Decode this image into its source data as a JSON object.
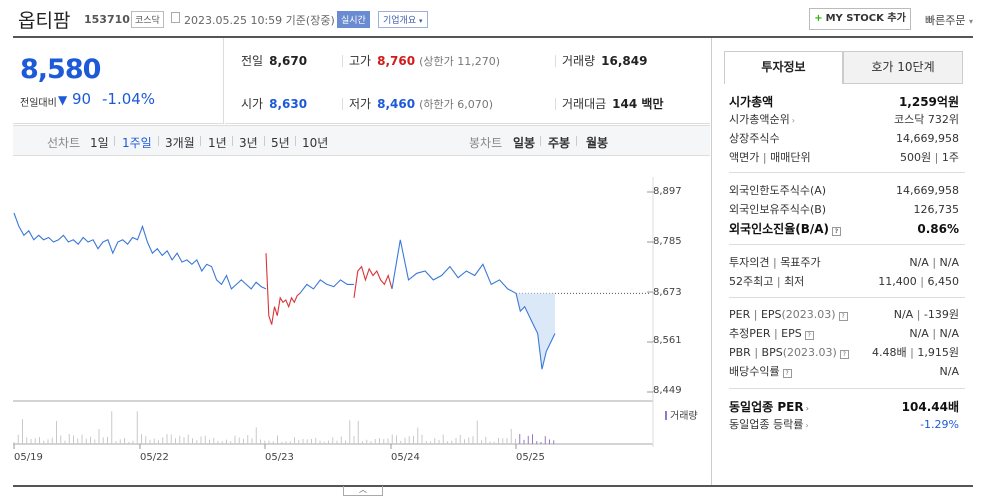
{
  "header": {
    "stock_name": "옵티팜",
    "stock_code": "153710",
    "market": "코스닥",
    "timestamp": "2023.05.25 10:59 기준(장중)",
    "realtime": "실시간",
    "overview": "기업개요",
    "mystock_label": "MY STOCK 추가",
    "quick_order": "빠른주문"
  },
  "price": {
    "current": "8,580",
    "change_label": "전일대비",
    "change_value": "90",
    "change_pct": "-1.04%"
  },
  "quotes": {
    "prev_close_label": "전일",
    "prev_close": "8,670",
    "high_label": "고가",
    "high": "8,760",
    "upper_limit": "(상한가 11,270)",
    "volume_label": "거래량",
    "volume": "16,849",
    "open_label": "시가",
    "open": "8,630",
    "low_label": "저가",
    "low": "8,460",
    "lower_limit": "(하한가 6,070)",
    "amount_label": "거래대금",
    "amount": "144 백만"
  },
  "period_bar": {
    "line_chart_label": "선차트",
    "periods": [
      "1일",
      "1주일",
      "3개월",
      "1년",
      "3년",
      "5년",
      "10년"
    ],
    "active_period": "1주일",
    "candle_label": "봉차트",
    "candles": [
      "일봉",
      "주봉",
      "월봉"
    ]
  },
  "chart_data": {
    "type": "line",
    "y_ticks": [
      "8,897",
      "8,785",
      "8,673",
      "8,561",
      "8,449"
    ],
    "ylim": [
      8449,
      8897
    ],
    "x_ticks": [
      "05/19",
      "05/22",
      "05/23",
      "05/24",
      "05/25"
    ],
    "prev_close_reference": 8670,
    "volume_legend": "거래량",
    "series": [
      {
        "color": "#3a78d8",
        "values": [
          8850,
          8820,
          8800,
          8810,
          8790,
          8800,
          8790,
          8795,
          8785,
          8790,
          8800,
          8785,
          8790,
          8780,
          8795,
          8785,
          8790,
          8770,
          8785,
          8790,
          8760,
          8785,
          8790,
          8780,
          8795,
          8790,
          8820,
          8785,
          8760,
          8770,
          8755,
          8765,
          8745,
          8760,
          8740,
          8745,
          8735,
          8745,
          8720,
          8735,
          8730,
          8700,
          8690,
          8710,
          8680,
          8690,
          8700,
          8690,
          8680,
          8695,
          8685,
          8680
        ]
      }
    ],
    "segments": [
      {
        "color": "#3a78d8",
        "from": 0,
        "to": 8650
      },
      {
        "color": "#d9343a",
        "day": "05/23",
        "values": [
          8760,
          8620,
          8600,
          8640,
          8620,
          8660,
          8650,
          8655,
          8640,
          8660,
          8650,
          8665,
          8670
        ]
      },
      {
        "color": "#3a78d8",
        "day": "05/23-afternoon",
        "values": [
          8670,
          8690,
          8680,
          8700,
          8690,
          8685,
          8700,
          8690,
          8690
        ]
      },
      {
        "color": "#d9343a",
        "day": "05/24-morning",
        "values": [
          8660,
          8720,
          8730,
          8700,
          8725,
          8710,
          8720,
          8700,
          8690,
          8710,
          8680
        ]
      },
      {
        "color": "#3a78d8",
        "day": "05/24",
        "values": [
          8680,
          8790,
          8700,
          8715,
          8720,
          8700,
          8710,
          8730,
          8705,
          8720,
          8710,
          8735,
          8690,
          8700,
          8680,
          8670
        ]
      },
      {
        "color": "#3a78d8",
        "day": "05/25",
        "values": [
          8670,
          8630,
          8640,
          8620,
          8600,
          8580,
          8500,
          8540,
          8560,
          8580
        ]
      }
    ]
  },
  "side": {
    "tab_active": "투자정보",
    "tab_other": "호가 10단계",
    "rows": [
      {
        "label": "시가총액",
        "value": "1,259억원"
      },
      {
        "label": "시가총액순위",
        "value": "코스닥 732위"
      },
      {
        "label": "상장주식수",
        "value": "14,669,958"
      },
      {
        "label": "액면가",
        "label2": "매매단위",
        "value": "500원",
        "value2": "1주"
      },
      {
        "label": "외국인한도주식수(A)",
        "value": "14,669,958"
      },
      {
        "label": "외국인보유주식수(B)",
        "value": "126,735"
      },
      {
        "label": "외국인소진율(B/A)",
        "value": "0.86%"
      },
      {
        "label": "투자의견",
        "label2": "목표주가",
        "value": "N/A",
        "value2": "N/A"
      },
      {
        "label": "52주최고",
        "label2": "최저",
        "value": "11,400",
        "value2": "6,450"
      },
      {
        "label": "PER",
        "label2": "EPS",
        "date": "(2023.03)",
        "value": "N/A",
        "value2": "-139원"
      },
      {
        "label": "추정PER",
        "label2": "EPS",
        "value": "N/A",
        "value2": "N/A"
      },
      {
        "label": "PBR",
        "label2": "BPS",
        "date": "(2023.03)",
        "value": "4.48배",
        "value2": "1,915원"
      },
      {
        "label": "배당수익률",
        "value": "N/A"
      },
      {
        "label": "동일업종 PER",
        "value": "104.44배"
      },
      {
        "label": "동일업종 등락률",
        "value": "-1.29%"
      }
    ]
  }
}
